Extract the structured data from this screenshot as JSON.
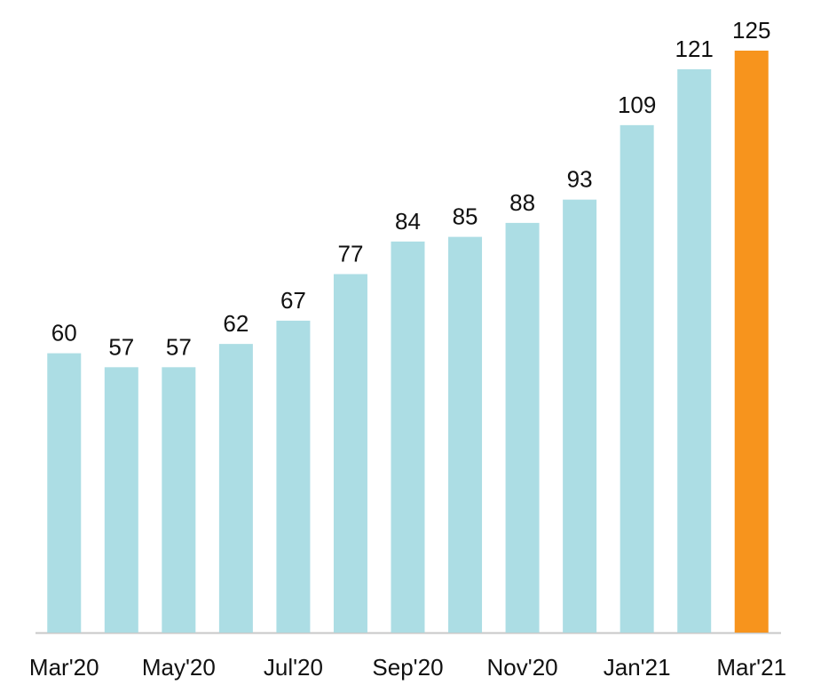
{
  "chart_data": {
    "type": "bar",
    "categories": [
      "Mar'20",
      null,
      "May'20",
      null,
      "Jul'20",
      null,
      "Sep'20",
      null,
      "Nov'20",
      null,
      "Jan'21",
      null,
      "Mar'21"
    ],
    "values": [
      60,
      57,
      57,
      62,
      67,
      77,
      84,
      85,
      88,
      93,
      109,
      121,
      125
    ],
    "colors": [
      "#acdde4",
      "#acdde4",
      "#acdde4",
      "#acdde4",
      "#acdde4",
      "#acdde4",
      "#acdde4",
      "#acdde4",
      "#acdde4",
      "#acdde4",
      "#acdde4",
      "#acdde4",
      "#f7941d"
    ],
    "ylim": [
      0,
      125
    ]
  }
}
